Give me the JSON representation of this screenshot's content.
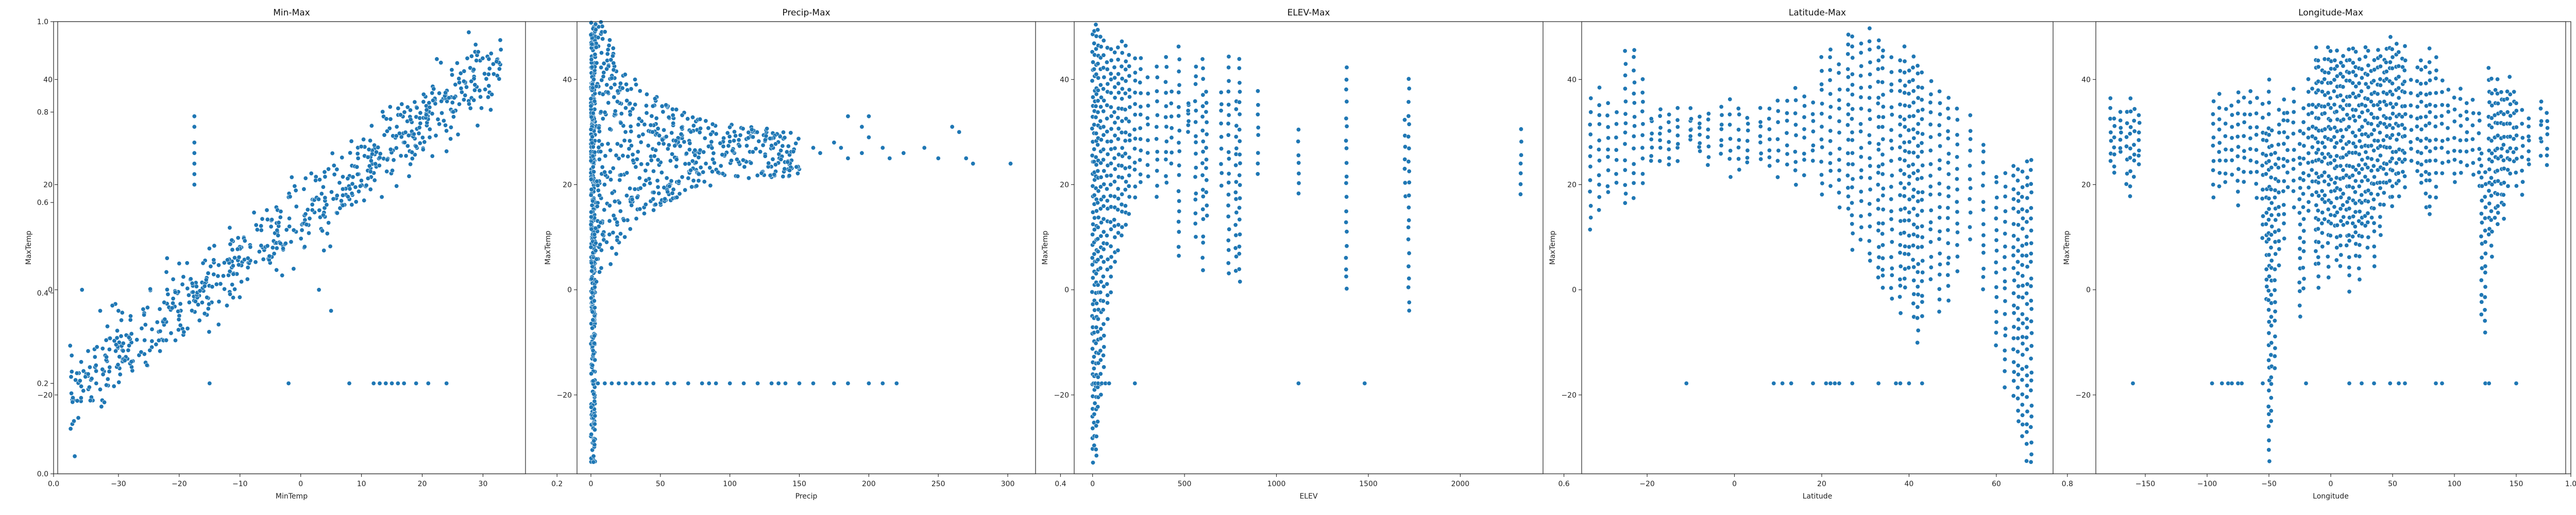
{
  "figure": {
    "bg_axis": {
      "xticks": [
        "0.0",
        "0.2",
        "0.4",
        "0.6",
        "0.8",
        "1.0"
      ],
      "yticks": [
        "0.0",
        "0.2",
        "0.4",
        "0.6",
        "0.8",
        "1.0"
      ],
      "xlim": [
        0,
        1
      ],
      "ylim": [
        0,
        1
      ]
    },
    "point_color": "#1f77b4"
  },
  "chart_data": [
    {
      "type": "scatter",
      "title": "Min-Max",
      "xlabel": "MinTemp",
      "ylabel": "MaxTemp",
      "xlim": [
        -40,
        37
      ],
      "ylim": [
        -35,
        51
      ],
      "xticks": [
        -30,
        -20,
        -10,
        0,
        10,
        20,
        30
      ],
      "yticks": [
        -20,
        0,
        20,
        40
      ],
      "grid": false,
      "clouds": [
        {
          "kind": "band",
          "x_range": [
            -38,
            33
          ],
          "slope": 0.9,
          "intercept": 14,
          "spread": 5,
          "n": 700
        },
        {
          "kind": "points",
          "points": [
            [
              -17.5,
              33
            ],
            [
              -17.5,
              31
            ],
            [
              -17.5,
              28
            ],
            [
              -17.5,
              26
            ],
            [
              -17.5,
              24
            ],
            [
              -17.5,
              22
            ],
            [
              -17.5,
              20
            ],
            [
              -36,
              0
            ],
            [
              -30,
              -4
            ],
            [
              -31,
              -3
            ],
            [
              -33,
              -4
            ],
            [
              -28,
              -5
            ],
            [
              5,
              -4
            ],
            [
              3,
              0
            ],
            [
              -22,
              6
            ],
            [
              -20,
              5
            ],
            [
              -21,
              2
            ]
          ]
        },
        {
          "kind": "hline",
          "y": -17.8,
          "x_values": [
            -15,
            -2,
            8,
            12,
            13,
            14,
            15,
            16,
            17,
            19,
            21,
            24
          ]
        }
      ]
    },
    {
      "type": "scatter",
      "title": "Precip-Max",
      "xlabel": "Precip",
      "ylabel": "MaxTemp",
      "xlim": [
        -10,
        320
      ],
      "ylim": [
        -35,
        51
      ],
      "xticks": [
        0,
        50,
        100,
        150,
        200,
        250,
        300
      ],
      "yticks": [
        -20,
        0,
        20,
        40
      ],
      "grid": false,
      "clouds": [
        {
          "kind": "vband",
          "x_range": [
            0,
            3
          ],
          "y_range": [
            -33,
            50
          ],
          "n": 300
        },
        {
          "kind": "fan",
          "x_range": [
            0,
            150
          ],
          "n": 650
        },
        {
          "kind": "points",
          "points": [
            [
              160,
              27
            ],
            [
              165,
              26
            ],
            [
              175,
              28
            ],
            [
              180,
              27
            ],
            [
              185,
              25
            ],
            [
              195,
              26
            ],
            [
              200,
              29
            ],
            [
              210,
              27
            ],
            [
              215,
              25
            ],
            [
              225,
              26
            ],
            [
              240,
              27
            ],
            [
              250,
              25
            ],
            [
              260,
              31
            ],
            [
              265,
              30
            ],
            [
              270,
              25
            ],
            [
              302,
              24
            ],
            [
              275,
              24
            ],
            [
              185,
              33
            ],
            [
              200,
              33
            ],
            [
              195,
              31
            ]
          ]
        },
        {
          "kind": "hline",
          "y": -17.8,
          "x_values": [
            5,
            10,
            15,
            20,
            25,
            30,
            35,
            40,
            45,
            55,
            60,
            70,
            80,
            85,
            90,
            100,
            110,
            120,
            130,
            135,
            140,
            150,
            160,
            175,
            185,
            200,
            210,
            220
          ]
        }
      ]
    },
    {
      "type": "scatter",
      "title": "ELEV-Max",
      "xlabel": "ELEV",
      "ylabel": "MaxTemp",
      "xlim": [
        -100,
        2450
      ],
      "ylim": [
        -35,
        51
      ],
      "xticks": [
        0,
        500,
        1000,
        1500,
        2000
      ],
      "yticks": [
        -20,
        0,
        20,
        40
      ],
      "grid": false,
      "columns": [
        [
          0,
          -33,
          48
        ],
        [
          10,
          -30,
          49
        ],
        [
          20,
          -32,
          50
        ],
        [
          30,
          -25,
          49
        ],
        [
          45,
          -20,
          48
        ],
        [
          60,
          -15,
          47
        ],
        [
          80,
          -5,
          46
        ],
        [
          100,
          0,
          46
        ],
        [
          120,
          5,
          45
        ],
        [
          140,
          8,
          46
        ],
        [
          160,
          10,
          47
        ],
        [
          180,
          12,
          46
        ],
        [
          200,
          15,
          45
        ],
        [
          230,
          18,
          44
        ],
        [
          260,
          20,
          44
        ],
        [
          300,
          22,
          40
        ],
        [
          350,
          18,
          42
        ],
        [
          400,
          20,
          44
        ],
        [
          430,
          24,
          38
        ],
        [
          470,
          6,
          46
        ],
        [
          520,
          30,
          36
        ],
        [
          560,
          10,
          43
        ],
        [
          600,
          4,
          44
        ],
        [
          620,
          14,
          38
        ],
        [
          700,
          20,
          38
        ],
        [
          740,
          3,
          44
        ],
        [
          780,
          4,
          36
        ],
        [
          800,
          2,
          44
        ],
        [
          900,
          22,
          38
        ],
        [
          1120,
          18,
          30
        ],
        [
          1380,
          0,
          42
        ],
        [
          1700,
          18,
          32
        ],
        [
          1720,
          -4,
          40
        ],
        [
          2330,
          18,
          30
        ]
      ],
      "clouds": [
        {
          "kind": "hline",
          "y": -17.8,
          "x_values": [
            5,
            15,
            30,
            50,
            70,
            90,
            230,
            1120,
            1480
          ]
        }
      ]
    },
    {
      "type": "scatter",
      "title": "Latitude-Max",
      "xlabel": "Latitude",
      "ylabel": "MaxTemp",
      "xlim": [
        -35,
        73
      ],
      "ylim": [
        -35,
        51
      ],
      "xticks": [
        -20,
        0,
        20,
        40,
        60
      ],
      "yticks": [
        -20,
        0,
        20,
        40
      ],
      "grid": false,
      "columns": [
        [
          -33,
          12,
          36
        ],
        [
          -31,
          15,
          38
        ],
        [
          -29,
          18,
          36
        ],
        [
          -27,
          20,
          34
        ],
        [
          -25,
          16,
          45
        ],
        [
          -23,
          18,
          46
        ],
        [
          -21,
          20,
          40
        ],
        [
          -19,
          24,
          33
        ],
        [
          -17,
          25,
          34
        ],
        [
          -15,
          24,
          33
        ],
        [
          -13,
          25,
          34
        ],
        [
          -10,
          28,
          34
        ],
        [
          -8,
          26,
          33
        ],
        [
          -6,
          24,
          34
        ],
        [
          -3,
          26,
          35
        ],
        [
          -1,
          22,
          36
        ],
        [
          1,
          23,
          35
        ],
        [
          3,
          24,
          33
        ],
        [
          6,
          25,
          34
        ],
        [
          8,
          23,
          35
        ],
        [
          10,
          22,
          36
        ],
        [
          12,
          24,
          36
        ],
        [
          14,
          20,
          38
        ],
        [
          16,
          22,
          37
        ],
        [
          18,
          24,
          36
        ],
        [
          20,
          18,
          44
        ],
        [
          22,
          20,
          46
        ],
        [
          24,
          16,
          43
        ],
        [
          26,
          15,
          49
        ],
        [
          27,
          8,
          48
        ],
        [
          29,
          10,
          47
        ],
        [
          31,
          5,
          50
        ],
        [
          33,
          2,
          48
        ],
        [
          34,
          0,
          46
        ],
        [
          36,
          -2,
          44
        ],
        [
          38,
          -4,
          44
        ],
        [
          39,
          0,
          46
        ],
        [
          40,
          4,
          42
        ],
        [
          41,
          -5,
          44
        ],
        [
          42,
          -10,
          43
        ],
        [
          43,
          -5,
          41
        ],
        [
          45,
          2,
          40
        ],
        [
          47,
          -4,
          38
        ],
        [
          49,
          -2,
          37
        ],
        [
          51,
          4,
          34
        ],
        [
          54,
          10,
          33
        ],
        [
          57,
          0,
          28
        ],
        [
          60,
          -10,
          22
        ],
        [
          62,
          -18,
          22
        ],
        [
          64,
          -20,
          24
        ],
        [
          65,
          -25,
          23
        ],
        [
          66,
          -28,
          22
        ],
        [
          67,
          -32,
          24
        ],
        [
          68,
          -33,
          25
        ]
      ],
      "clouds": [
        {
          "kind": "hline",
          "y": -17.8,
          "x_values": [
            -11,
            9,
            11,
            13,
            18,
            21,
            22,
            23,
            24,
            27,
            33,
            37,
            38,
            40,
            43
          ]
        }
      ]
    },
    {
      "type": "scatter",
      "title": "Longitude-Max",
      "xlabel": "Longitude",
      "ylabel": "MaxTemp",
      "xlim": [
        -190,
        190
      ],
      "ylim": [
        -35,
        51
      ],
      "xticks": [
        -150,
        -100,
        -50,
        0,
        50,
        100,
        150
      ],
      "yticks": [
        -20,
        0,
        20,
        40
      ],
      "grid": false,
      "columns": [
        [
          -178,
          24,
          36
        ],
        [
          -175,
          22,
          33
        ],
        [
          -170,
          26,
          34
        ],
        [
          -165,
          20,
          34
        ],
        [
          -162,
          18,
          36
        ],
        [
          -159,
          22,
          34
        ],
        [
          -155,
          24,
          33
        ],
        [
          -95,
          18,
          36
        ],
        [
          -90,
          20,
          37
        ],
        [
          -85,
          20,
          34
        ],
        [
          -80,
          22,
          35
        ],
        [
          -75,
          16,
          38
        ],
        [
          -70,
          20,
          36
        ],
        [
          -65,
          22,
          38
        ],
        [
          -60,
          18,
          36
        ],
        [
          -55,
          10,
          35
        ],
        [
          -52,
          -2,
          30
        ],
        [
          -50,
          -33,
          40
        ],
        [
          -48,
          -25,
          30
        ],
        [
          -45,
          -15,
          26
        ],
        [
          -42,
          5,
          34
        ],
        [
          -38,
          10,
          36
        ],
        [
          -35,
          20,
          34
        ],
        [
          -30,
          16,
          38
        ],
        [
          -25,
          -5,
          30
        ],
        [
          -22,
          0,
          34
        ],
        [
          -18,
          15,
          40
        ],
        [
          -15,
          18,
          38
        ],
        [
          -12,
          5,
          46
        ],
        [
          -10,
          0,
          44
        ],
        [
          -7,
          8,
          42
        ],
        [
          -5,
          14,
          44
        ],
        [
          -2,
          2,
          46
        ],
        [
          0,
          10,
          46
        ],
        [
          3,
          12,
          44
        ],
        [
          5,
          6,
          45
        ],
        [
          8,
          4,
          43
        ],
        [
          10,
          12,
          45
        ],
        [
          13,
          8,
          44
        ],
        [
          15,
          0,
          46
        ],
        [
          18,
          10,
          46
        ],
        [
          20,
          6,
          45
        ],
        [
          23,
          2,
          44
        ],
        [
          25,
          10,
          42
        ],
        [
          28,
          12,
          46
        ],
        [
          30,
          8,
          45
        ],
        [
          33,
          14,
          42
        ],
        [
          35,
          4,
          44
        ],
        [
          38,
          18,
          46
        ],
        [
          40,
          10,
          45
        ],
        [
          43,
          16,
          44
        ],
        [
          45,
          20,
          46
        ],
        [
          48,
          18,
          48
        ],
        [
          50,
          16,
          46
        ],
        [
          53,
          20,
          47
        ],
        [
          55,
          18,
          45
        ],
        [
          58,
          22,
          44
        ],
        [
          60,
          20,
          46
        ],
        [
          65,
          24,
          40
        ],
        [
          70,
          22,
          42
        ],
        [
          73,
          20,
          44
        ],
        [
          77,
          16,
          42
        ],
        [
          80,
          14,
          46
        ],
        [
          85,
          18,
          44
        ],
        [
          90,
          22,
          40
        ],
        [
          95,
          24,
          38
        ],
        [
          100,
          20,
          36
        ],
        [
          105,
          22,
          38
        ],
        [
          110,
          24,
          36
        ],
        [
          115,
          22,
          36
        ],
        [
          120,
          20,
          34
        ],
        [
          122,
          -5,
          26
        ],
        [
          125,
          -8,
          22
        ],
        [
          128,
          10,
          42
        ],
        [
          130,
          6,
          40
        ],
        [
          133,
          14,
          38
        ],
        [
          135,
          12,
          40
        ],
        [
          138,
          16,
          38
        ],
        [
          140,
          14,
          36
        ],
        [
          143,
          20,
          38
        ],
        [
          145,
          22,
          40
        ],
        [
          148,
          24,
          38
        ],
        [
          150,
          20,
          36
        ],
        [
          155,
          18,
          34
        ],
        [
          160,
          24,
          32
        ],
        [
          170,
          26,
          36
        ],
        [
          175,
          24,
          34
        ]
      ],
      "clouds": [
        {
          "kind": "hline",
          "y": -17.8,
          "x_values": [
            -160,
            -96,
            -88,
            -83,
            -80,
            -75,
            -72,
            -55,
            -20,
            15,
            25,
            35,
            48,
            55,
            60,
            85,
            90,
            125,
            128,
            150
          ]
        }
      ]
    }
  ]
}
